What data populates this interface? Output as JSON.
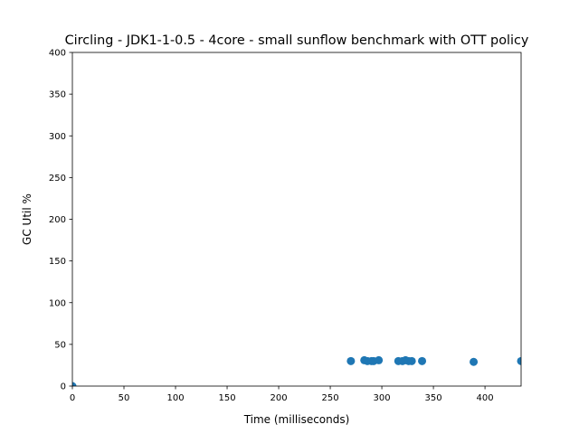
{
  "chart_data": {
    "type": "scatter",
    "title": "Circling - JDK1-1-0.5 - 4core -  small sunflow benchmark with OTT policy",
    "xlabel": "Time (milliseconds)",
    "ylabel": "GC Util %",
    "xlim": [
      0,
      435
    ],
    "ylim": [
      0,
      400
    ],
    "xticks": [
      0,
      50,
      100,
      150,
      200,
      250,
      300,
      350,
      400
    ],
    "yticks": [
      0,
      50,
      100,
      150,
      200,
      250,
      300,
      350,
      400
    ],
    "grid": false,
    "color": "#1f77b4",
    "points": [
      {
        "x": 0,
        "y": 0
      },
      {
        "x": 270,
        "y": 30
      },
      {
        "x": 283,
        "y": 31
      },
      {
        "x": 286,
        "y": 30
      },
      {
        "x": 290,
        "y": 30
      },
      {
        "x": 292,
        "y": 30
      },
      {
        "x": 297,
        "y": 31
      },
      {
        "x": 316,
        "y": 30
      },
      {
        "x": 320,
        "y": 30
      },
      {
        "x": 323,
        "y": 31
      },
      {
        "x": 326,
        "y": 30
      },
      {
        "x": 329,
        "y": 30
      },
      {
        "x": 339,
        "y": 30
      },
      {
        "x": 389,
        "y": 29
      },
      {
        "x": 435,
        "y": 30
      }
    ]
  }
}
